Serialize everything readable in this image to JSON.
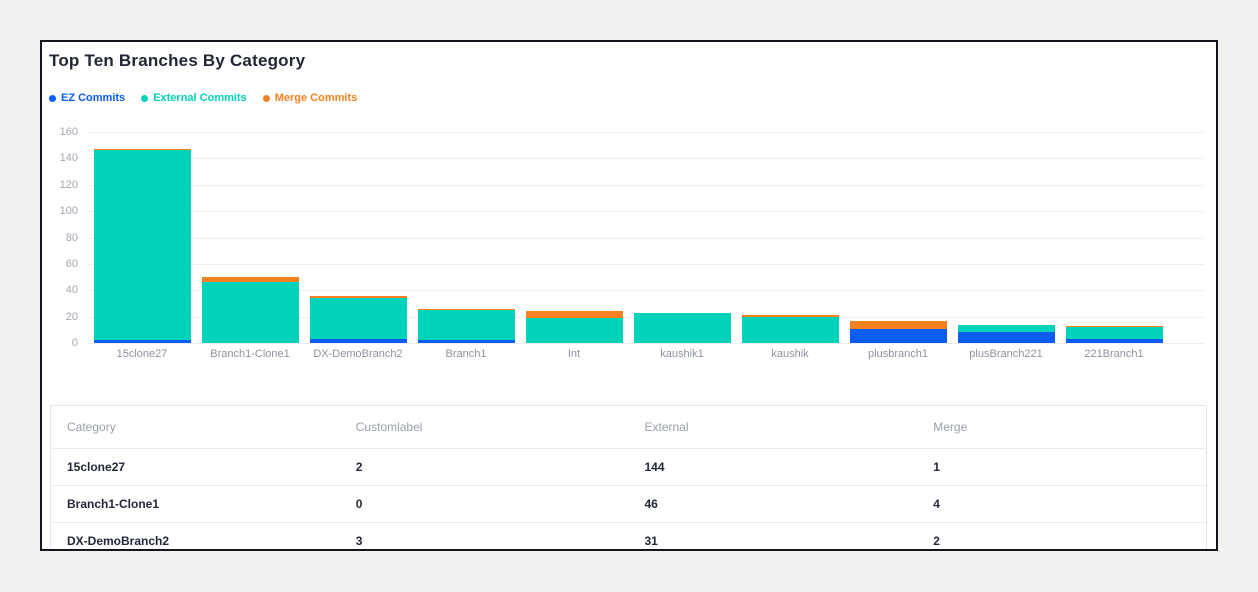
{
  "card": {
    "title": "Top Ten Branches By Category"
  },
  "legend": [
    {
      "label": "EZ Commits",
      "color": "#0b5cf5"
    },
    {
      "label": "External Commits",
      "color": "#00d3b9"
    },
    {
      "label": "Merge Commits",
      "color": "#f6821f"
    }
  ],
  "chart_data": {
    "type": "bar",
    "stacked": true,
    "title": "Top Ten Branches By Category",
    "categories": [
      "15clone27",
      "Branch1-Clone1",
      "DX-DemoBranch2",
      "Branch1",
      "Int",
      "kaushik1",
      "kaushik",
      "plusbranch1",
      "plusBranch221",
      "221Branch1"
    ],
    "series": [
      {
        "name": "EZ Commits",
        "color": "#0b5cf5",
        "values": [
          2,
          0,
          3,
          2,
          0,
          0,
          0,
          11,
          8,
          3
        ]
      },
      {
        "name": "External Commits",
        "color": "#00d3b9",
        "values": [
          144,
          46,
          31,
          23,
          19,
          23,
          20,
          0,
          6,
          9
        ]
      },
      {
        "name": "Merge Commits",
        "color": "#f6821f",
        "values": [
          1,
          4,
          2,
          1,
          5,
          0,
          1,
          6,
          0,
          1
        ]
      }
    ],
    "ylim": [
      0,
      160
    ],
    "yticks": [
      0,
      20,
      40,
      60,
      80,
      100,
      120,
      140,
      160
    ],
    "grid": true,
    "legend_position": "top-left"
  },
  "table": {
    "headers": [
      "Category",
      "Customlabel",
      "External",
      "Merge"
    ],
    "rows": [
      [
        "15clone27",
        "2",
        "144",
        "1"
      ],
      [
        "Branch1-Clone1",
        "0",
        "46",
        "4"
      ],
      [
        "DX-DemoBranch2",
        "3",
        "31",
        "2"
      ]
    ]
  },
  "colors": {
    "page_background": "#f1f1f2",
    "card_border": "#15151d",
    "title_text": "#222736",
    "axis_text": "#a2a6b0",
    "category_text": "#8d92a0",
    "gridline": "#ededf2"
  }
}
